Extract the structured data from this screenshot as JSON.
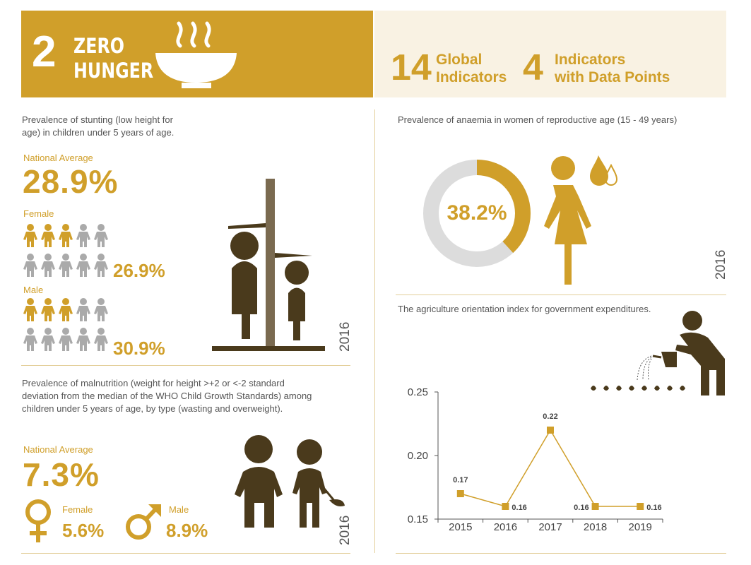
{
  "header": {
    "goal_number": "2",
    "goal_title_line1": "ZERO",
    "goal_title_line2": "HUNGER",
    "global_count": "14",
    "global_label_line1": "Global",
    "global_label_line2": "Indicators",
    "datapoints_count": "4",
    "datapoints_label_line1": "Indicators",
    "datapoints_label_line2": "with Data Points"
  },
  "stunting": {
    "description_line1": "Prevalence of stunting (low height for",
    "description_line2": "age) in children under 5 years of age.",
    "national_label": "National Average",
    "national_value": "28.9%",
    "female_label": "Female",
    "female_value": "26.9%",
    "male_label": "Male",
    "male_value": "30.9%",
    "year": "2016"
  },
  "malnutrition": {
    "description_line1": "Prevalence of malnutrition (weight for height >+2 or <-2 standard",
    "description_line2": "deviation from the median of the WHO Child Growth Standards) among",
    "description_line3": "children under 5 years of age, by type (wasting and overweight).",
    "national_label": "National Average",
    "national_value": "7.3%",
    "female_label": "Female",
    "female_value": "5.6%",
    "male_label": "Male",
    "male_value": "8.9%",
    "year": "2016"
  },
  "anaemia": {
    "description": "Prevalence of anaemia in women of reproductive age (15 - 49 years)",
    "value": "38.2%",
    "fraction": 0.382,
    "year": "2016"
  },
  "agriculture": {
    "description": "The agriculture orientation index for government expenditures."
  },
  "colors": {
    "gold": "#d09f2a",
    "dark_brown": "#4a3a1c",
    "grey": "#aaaaaa",
    "cream": "#f9f2e3"
  },
  "chart_data": {
    "type": "line",
    "x": [
      "2015",
      "2016",
      "2017",
      "2018",
      "2019"
    ],
    "values": [
      0.17,
      0.16,
      0.22,
      0.16,
      0.16
    ],
    "data_labels": [
      "0.17",
      "0.16",
      "0.22",
      "0.16",
      "0.16"
    ],
    "yticks": [
      "0.15",
      "0.20",
      "0.25"
    ],
    "ylim": [
      0.15,
      0.25
    ],
    "title": "",
    "xlabel": "",
    "ylabel": ""
  }
}
